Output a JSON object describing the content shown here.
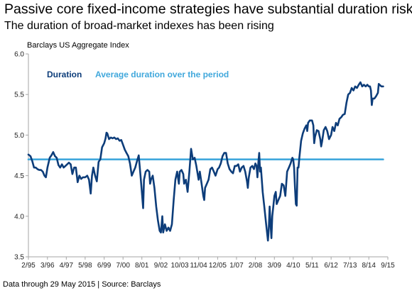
{
  "header": {
    "title": "Passive core fixed-income strategies have substantial duration risk",
    "subtitle": "The duration of broad-market indexes has been rising"
  },
  "footer": {
    "note": "Data through 29 May 2015 | Source: Barclays"
  },
  "colors": {
    "duration": "#0d3d7a",
    "average": "#41a8dc",
    "axis": "#a6a6a6"
  },
  "chart_data": {
    "type": "line",
    "title": "Barclays US Aggregate Index",
    "xlabel": "",
    "ylabel": "",
    "ylim": [
      3.5,
      6.0
    ],
    "y_ticks": [
      "3.5",
      "4.0",
      "4.5",
      "5.0",
      "5.5",
      "6.0"
    ],
    "x_ticks": [
      {
        "label": "2/95",
        "x": 1995.08
      },
      {
        "label": "3/96",
        "x": 1996.17
      },
      {
        "label": "4/97",
        "x": 1997.25
      },
      {
        "label": "5/98",
        "x": 1998.33
      },
      {
        "label": "6/99",
        "x": 1999.42
      },
      {
        "label": "7/00",
        "x": 2000.5
      },
      {
        "label": "8/01",
        "x": 2001.58
      },
      {
        "label": "9/02",
        "x": 2002.67
      },
      {
        "label": "10/03",
        "x": 2003.75
      },
      {
        "label": "11/04",
        "x": 2004.83
      },
      {
        "label": "12/05",
        "x": 2005.92
      },
      {
        "label": "1/07",
        "x": 2007.0
      },
      {
        "label": "2/08",
        "x": 2008.08
      },
      {
        "label": "3/09",
        "x": 2009.17
      },
      {
        "label": "4/10",
        "x": 2010.25
      },
      {
        "label": "5/11",
        "x": 2011.33
      },
      {
        "label": "6/12",
        "x": 2012.42
      },
      {
        "label": "7/13",
        "x": 2013.5
      },
      {
        "label": "8/14",
        "x": 2014.58
      },
      {
        "label": "9/15",
        "x": 2015.67
      }
    ],
    "x_range": [
      1995.08,
      2015.67
    ],
    "grid": false,
    "legend_position": "top-left",
    "series": [
      {
        "name": "Duration",
        "color": "#0d3d7a",
        "points": [
          [
            1995.08,
            4.76
          ],
          [
            1995.2,
            4.74
          ],
          [
            1995.3,
            4.68
          ],
          [
            1995.4,
            4.6
          ],
          [
            1995.5,
            4.6
          ],
          [
            1995.6,
            4.58
          ],
          [
            1995.7,
            4.57
          ],
          [
            1995.8,
            4.57
          ],
          [
            1995.9,
            4.55
          ],
          [
            1996.0,
            4.5
          ],
          [
            1996.08,
            4.48
          ],
          [
            1996.17,
            4.6
          ],
          [
            1996.3,
            4.72
          ],
          [
            1996.4,
            4.75
          ],
          [
            1996.5,
            4.79
          ],
          [
            1996.6,
            4.74
          ],
          [
            1996.7,
            4.72
          ],
          [
            1996.8,
            4.63
          ],
          [
            1996.9,
            4.6
          ],
          [
            1997.0,
            4.64
          ],
          [
            1997.1,
            4.6
          ],
          [
            1997.2,
            4.62
          ],
          [
            1997.3,
            4.64
          ],
          [
            1997.4,
            4.66
          ],
          [
            1997.5,
            4.64
          ],
          [
            1997.6,
            4.52
          ],
          [
            1997.7,
            4.6
          ],
          [
            1997.8,
            4.6
          ],
          [
            1997.9,
            4.42
          ],
          [
            1998.0,
            4.5
          ],
          [
            1998.1,
            4.46
          ],
          [
            1998.2,
            4.48
          ],
          [
            1998.33,
            4.48
          ],
          [
            1998.45,
            4.5
          ],
          [
            1998.55,
            4.45
          ],
          [
            1998.65,
            4.28
          ],
          [
            1998.72,
            4.5
          ],
          [
            1998.8,
            4.6
          ],
          [
            1998.9,
            4.5
          ],
          [
            1999.0,
            4.43
          ],
          [
            1999.1,
            4.67
          ],
          [
            1999.2,
            4.7
          ],
          [
            1999.3,
            4.85
          ],
          [
            1999.42,
            4.9
          ],
          [
            1999.5,
            4.96
          ],
          [
            1999.55,
            5.03
          ],
          [
            1999.6,
            5.02
          ],
          [
            1999.7,
            4.95
          ],
          [
            1999.8,
            4.97
          ],
          [
            1999.9,
            4.96
          ],
          [
            2000.0,
            4.97
          ],
          [
            2000.1,
            4.95
          ],
          [
            2000.2,
            4.96
          ],
          [
            2000.3,
            4.93
          ],
          [
            2000.4,
            4.94
          ],
          [
            2000.5,
            4.88
          ],
          [
            2000.6,
            4.82
          ],
          [
            2000.7,
            4.78
          ],
          [
            2000.8,
            4.74
          ],
          [
            2000.9,
            4.65
          ],
          [
            2001.0,
            4.5
          ],
          [
            2001.1,
            4.55
          ],
          [
            2001.2,
            4.6
          ],
          [
            2001.3,
            4.68
          ],
          [
            2001.4,
            4.75
          ],
          [
            2001.5,
            4.5
          ],
          [
            2001.58,
            4.3
          ],
          [
            2001.65,
            4.1
          ],
          [
            2001.7,
            4.45
          ],
          [
            2001.8,
            4.55
          ],
          [
            2001.9,
            4.57
          ],
          [
            2002.0,
            4.55
          ],
          [
            2002.05,
            4.4
          ],
          [
            2002.1,
            4.45
          ],
          [
            2002.2,
            4.5
          ],
          [
            2002.3,
            4.35
          ],
          [
            2002.4,
            4.12
          ],
          [
            2002.5,
            3.95
          ],
          [
            2002.6,
            3.82
          ],
          [
            2002.67,
            3.8
          ],
          [
            2002.75,
            4.0
          ],
          [
            2002.8,
            3.8
          ],
          [
            2002.9,
            3.9
          ],
          [
            2003.0,
            3.82
          ],
          [
            2003.1,
            3.86
          ],
          [
            2003.2,
            3.82
          ],
          [
            2003.3,
            3.9
          ],
          [
            2003.4,
            4.2
          ],
          [
            2003.5,
            4.45
          ],
          [
            2003.6,
            4.55
          ],
          [
            2003.7,
            4.4
          ],
          [
            2003.75,
            4.55
          ],
          [
            2003.85,
            4.57
          ],
          [
            2003.95,
            4.52
          ],
          [
            2004.0,
            4.4
          ],
          [
            2004.1,
            4.45
          ],
          [
            2004.2,
            4.3
          ],
          [
            2004.3,
            4.55
          ],
          [
            2004.4,
            4.83
          ],
          [
            2004.5,
            4.7
          ],
          [
            2004.6,
            4.72
          ],
          [
            2004.7,
            4.62
          ],
          [
            2004.83,
            4.45
          ],
          [
            2004.9,
            4.55
          ],
          [
            2005.0,
            4.4
          ],
          [
            2005.1,
            4.25
          ],
          [
            2005.15,
            4.2
          ],
          [
            2005.2,
            4.35
          ],
          [
            2005.3,
            4.4
          ],
          [
            2005.4,
            4.45
          ],
          [
            2005.5,
            4.58
          ],
          [
            2005.6,
            4.6
          ],
          [
            2005.7,
            4.55
          ],
          [
            2005.8,
            4.5
          ],
          [
            2005.92,
            4.58
          ],
          [
            2006.0,
            4.6
          ],
          [
            2006.1,
            4.65
          ],
          [
            2006.2,
            4.74
          ],
          [
            2006.3,
            4.78
          ],
          [
            2006.4,
            4.78
          ],
          [
            2006.5,
            4.65
          ],
          [
            2006.6,
            4.58
          ],
          [
            2006.7,
            4.55
          ],
          [
            2006.8,
            4.53
          ],
          [
            2006.9,
            4.62
          ],
          [
            2007.0,
            4.62
          ],
          [
            2007.1,
            4.64
          ],
          [
            2007.2,
            4.55
          ],
          [
            2007.3,
            4.6
          ],
          [
            2007.4,
            4.62
          ],
          [
            2007.5,
            4.55
          ],
          [
            2007.6,
            4.43
          ],
          [
            2007.65,
            4.35
          ],
          [
            2007.7,
            4.47
          ],
          [
            2007.8,
            4.6
          ],
          [
            2007.9,
            4.62
          ],
          [
            2008.0,
            4.58
          ],
          [
            2008.08,
            4.65
          ],
          [
            2008.15,
            4.62
          ],
          [
            2008.2,
            4.48
          ],
          [
            2008.25,
            4.66
          ],
          [
            2008.3,
            4.78
          ],
          [
            2008.35,
            4.55
          ],
          [
            2008.4,
            4.6
          ],
          [
            2008.5,
            4.3
          ],
          [
            2008.6,
            4.1
          ],
          [
            2008.7,
            3.9
          ],
          [
            2008.8,
            3.7
          ],
          [
            2008.85,
            3.85
          ],
          [
            2008.9,
            4.12
          ],
          [
            2008.95,
            3.9
          ],
          [
            2009.0,
            3.73
          ],
          [
            2009.05,
            4.0
          ],
          [
            2009.17,
            4.25
          ],
          [
            2009.25,
            4.3
          ],
          [
            2009.3,
            4.15
          ],
          [
            2009.4,
            4.2
          ],
          [
            2009.5,
            4.25
          ],
          [
            2009.6,
            4.4
          ],
          [
            2009.7,
            4.38
          ],
          [
            2009.8,
            4.25
          ],
          [
            2009.9,
            4.55
          ],
          [
            2010.0,
            4.6
          ],
          [
            2010.1,
            4.65
          ],
          [
            2010.2,
            4.72
          ],
          [
            2010.25,
            4.7
          ],
          [
            2010.3,
            4.6
          ],
          [
            2010.35,
            4.35
          ],
          [
            2010.4,
            4.15
          ],
          [
            2010.45,
            4.13
          ],
          [
            2010.5,
            4.6
          ],
          [
            2010.55,
            4.6
          ],
          [
            2010.6,
            4.72
          ],
          [
            2010.7,
            4.93
          ],
          [
            2010.8,
            5.02
          ],
          [
            2010.9,
            5.08
          ],
          [
            2011.0,
            5.12
          ],
          [
            2011.05,
            5.05
          ],
          [
            2011.1,
            5.15
          ],
          [
            2011.2,
            5.18
          ],
          [
            2011.33,
            5.18
          ],
          [
            2011.4,
            5.12
          ],
          [
            2011.45,
            4.9
          ],
          [
            2011.5,
            4.98
          ],
          [
            2011.6,
            5.06
          ],
          [
            2011.7,
            5.05
          ],
          [
            2011.8,
            4.95
          ],
          [
            2011.85,
            4.86
          ],
          [
            2011.9,
            4.92
          ],
          [
            2012.0,
            5.06
          ],
          [
            2012.1,
            5.1
          ],
          [
            2012.2,
            5.05
          ],
          [
            2012.3,
            4.95
          ],
          [
            2012.42,
            5.0
          ],
          [
            2012.5,
            5.1
          ],
          [
            2012.6,
            5.05
          ],
          [
            2012.7,
            5.15
          ],
          [
            2012.8,
            5.12
          ],
          [
            2012.9,
            5.2
          ],
          [
            2013.0,
            5.22
          ],
          [
            2013.1,
            5.25
          ],
          [
            2013.2,
            5.26
          ],
          [
            2013.3,
            5.4
          ],
          [
            2013.4,
            5.5
          ],
          [
            2013.5,
            5.52
          ],
          [
            2013.6,
            5.58
          ],
          [
            2013.7,
            5.55
          ],
          [
            2013.8,
            5.6
          ],
          [
            2013.9,
            5.58
          ],
          [
            2014.0,
            5.62
          ],
          [
            2014.1,
            5.65
          ],
          [
            2014.2,
            5.6
          ],
          [
            2014.3,
            5.62
          ],
          [
            2014.4,
            5.6
          ],
          [
            2014.5,
            5.62
          ],
          [
            2014.58,
            5.6
          ],
          [
            2014.65,
            5.6
          ],
          [
            2014.7,
            5.55
          ],
          [
            2014.75,
            5.37
          ],
          [
            2014.8,
            5.45
          ],
          [
            2014.9,
            5.45
          ],
          [
            2015.0,
            5.48
          ],
          [
            2015.1,
            5.52
          ],
          [
            2015.15,
            5.63
          ],
          [
            2015.2,
            5.62
          ],
          [
            2015.3,
            5.6
          ],
          [
            2015.4,
            5.6
          ]
        ]
      },
      {
        "name": "Average duration over the period",
        "color": "#41a8dc",
        "points": [
          [
            1995.08,
            4.7
          ],
          [
            2015.4,
            4.7
          ]
        ]
      }
    ]
  }
}
